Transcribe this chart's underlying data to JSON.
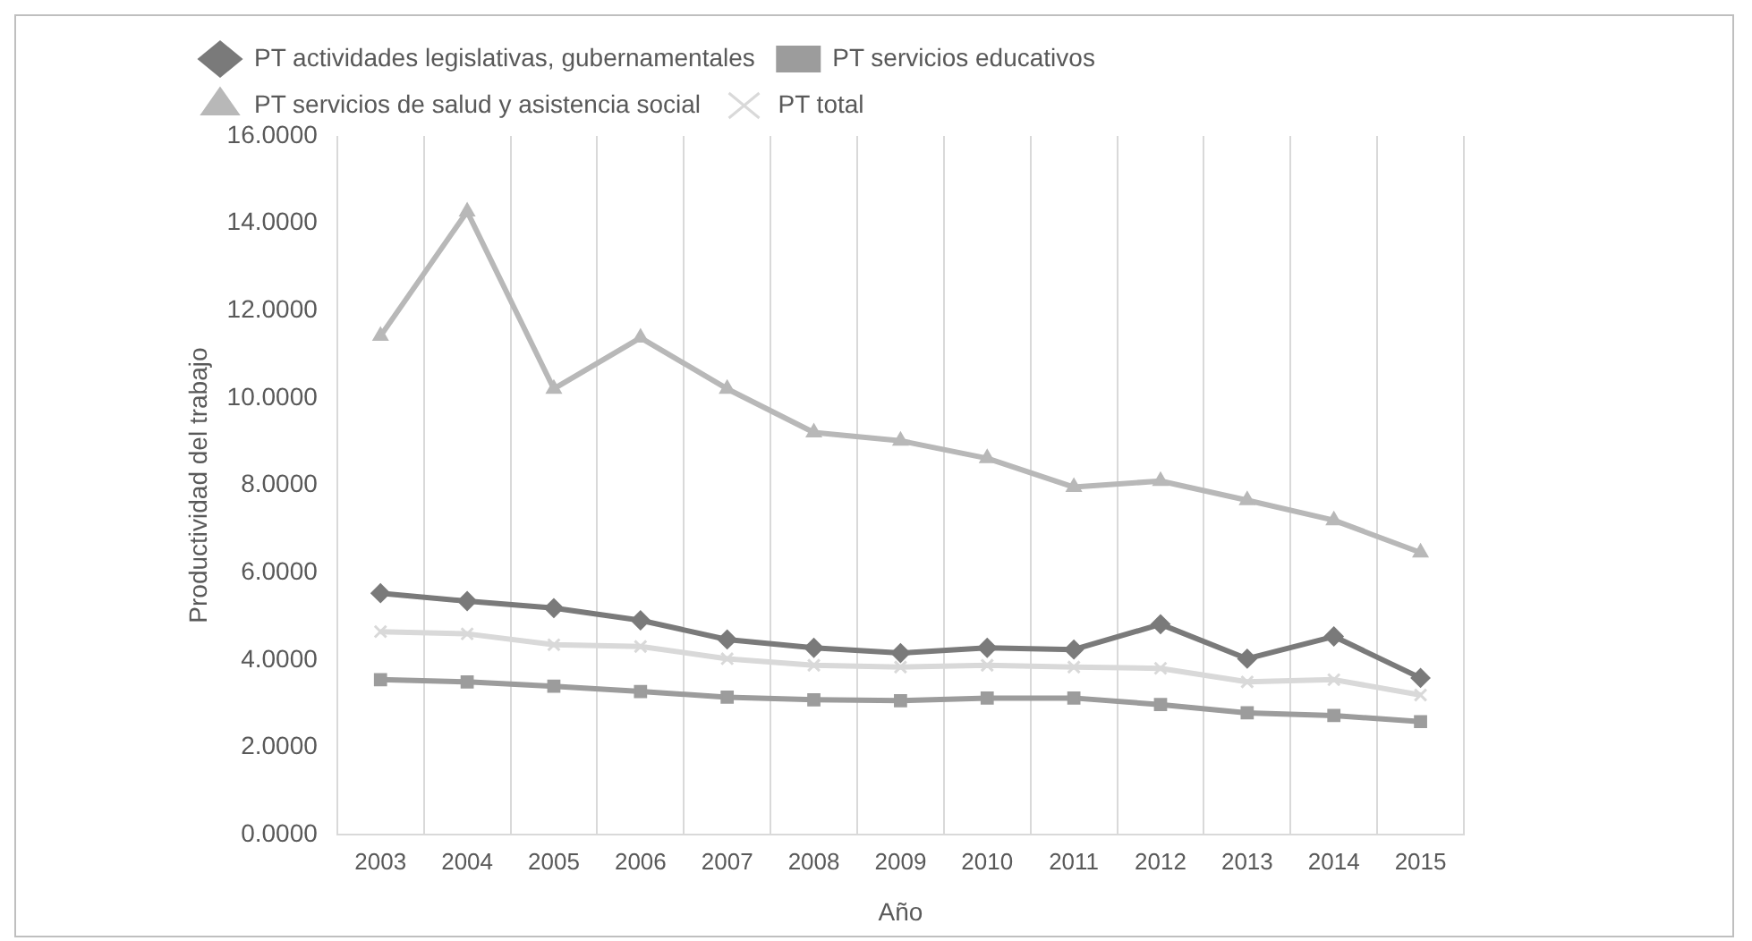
{
  "chart_data": {
    "type": "line",
    "xlabel": "Año",
    "ylabel": "Productividad del trabajo",
    "categories": [
      "2003",
      "2004",
      "2005",
      "2006",
      "2007",
      "2008",
      "2009",
      "2010",
      "2011",
      "2012",
      "2013",
      "2014",
      "2015"
    ],
    "series": [
      {
        "name": "PT actividades legislativas, gubernamentales",
        "color": "#7a7a7a",
        "marker": "diamond",
        "values": [
          5.53,
          5.35,
          5.19,
          4.91,
          4.47,
          4.28,
          4.16,
          4.28,
          4.24,
          4.82,
          4.03,
          4.54,
          3.59
        ]
      },
      {
        "name": "PT servicios educativos",
        "color": "#9c9c9c",
        "marker": "square",
        "values": [
          3.55,
          3.5,
          3.4,
          3.28,
          3.15,
          3.09,
          3.07,
          3.13,
          3.13,
          2.98,
          2.79,
          2.73,
          2.59
        ]
      },
      {
        "name": "PT servicios de salud y asistencia social",
        "color": "#b8b8b8",
        "marker": "triangle",
        "values": [
          11.42,
          14.27,
          10.21,
          11.38,
          10.21,
          9.21,
          9.02,
          8.62,
          7.96,
          8.1,
          7.66,
          7.2,
          6.46
        ]
      },
      {
        "name": "PT total",
        "color": "#d9d9d9",
        "marker": "cross",
        "values": [
          4.65,
          4.6,
          4.35,
          4.31,
          4.03,
          3.88,
          3.84,
          3.88,
          3.84,
          3.81,
          3.5,
          3.55,
          3.2
        ]
      }
    ],
    "ylim": [
      0,
      16
    ],
    "yticks": [
      {
        "value": 0,
        "label": "0.0000"
      },
      {
        "value": 2,
        "label": "2.0000"
      },
      {
        "value": 4,
        "label": "4.0000"
      },
      {
        "value": 6,
        "label": "6.0000"
      },
      {
        "value": 8,
        "label": "8.0000"
      },
      {
        "value": 10,
        "label": "10.0000"
      },
      {
        "value": 12,
        "label": "12.0000"
      },
      {
        "value": 14,
        "label": "14.0000"
      },
      {
        "value": 16,
        "label": "16.0000"
      }
    ],
    "grid": "x",
    "legend": "top",
    "line_style": "solid"
  }
}
